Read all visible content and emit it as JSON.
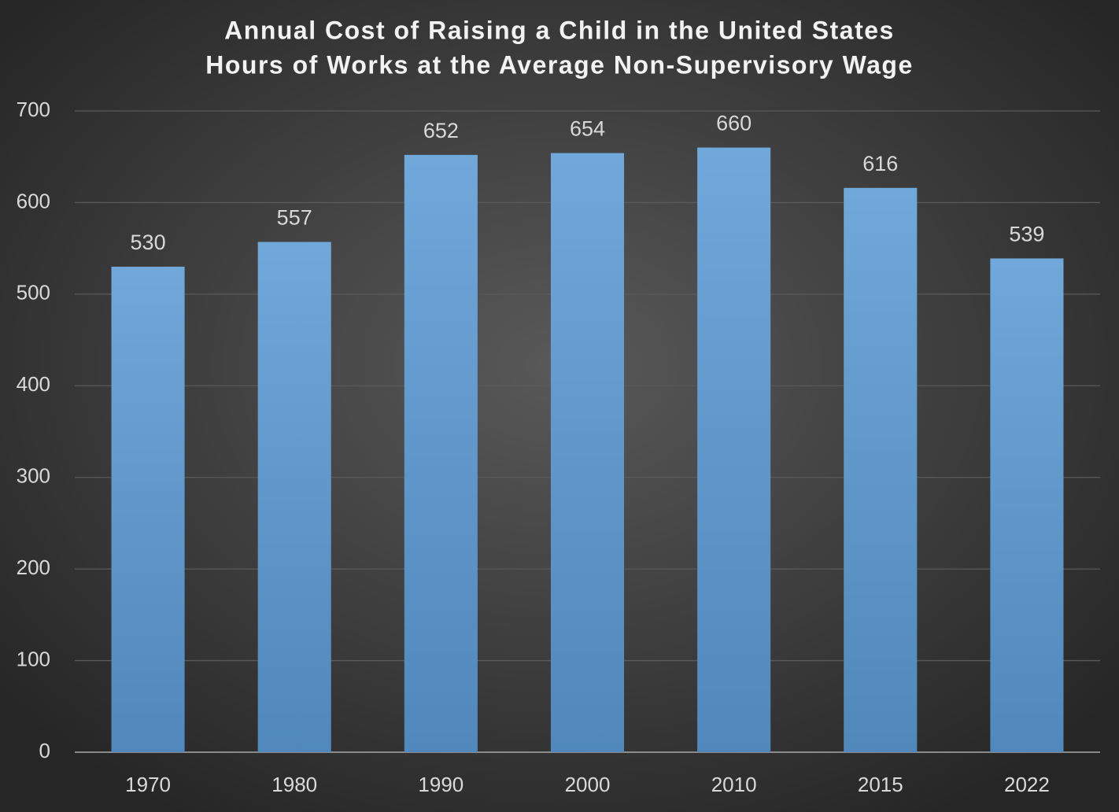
{
  "chart_data": {
    "type": "bar",
    "title": "Annual Cost of Raising a Child in the United States",
    "subtitle": "Hours of Works at the Average Non-Supervisory Wage",
    "categories": [
      "1970",
      "1980",
      "1990",
      "2000",
      "2010",
      "2015",
      "2022"
    ],
    "values": [
      530,
      557,
      652,
      654,
      660,
      616,
      539
    ],
    "color": "#5b9bd5",
    "ylim": [
      0,
      700
    ],
    "yticks": [
      0,
      100,
      200,
      300,
      400,
      500,
      600,
      700
    ],
    "grid": true
  }
}
